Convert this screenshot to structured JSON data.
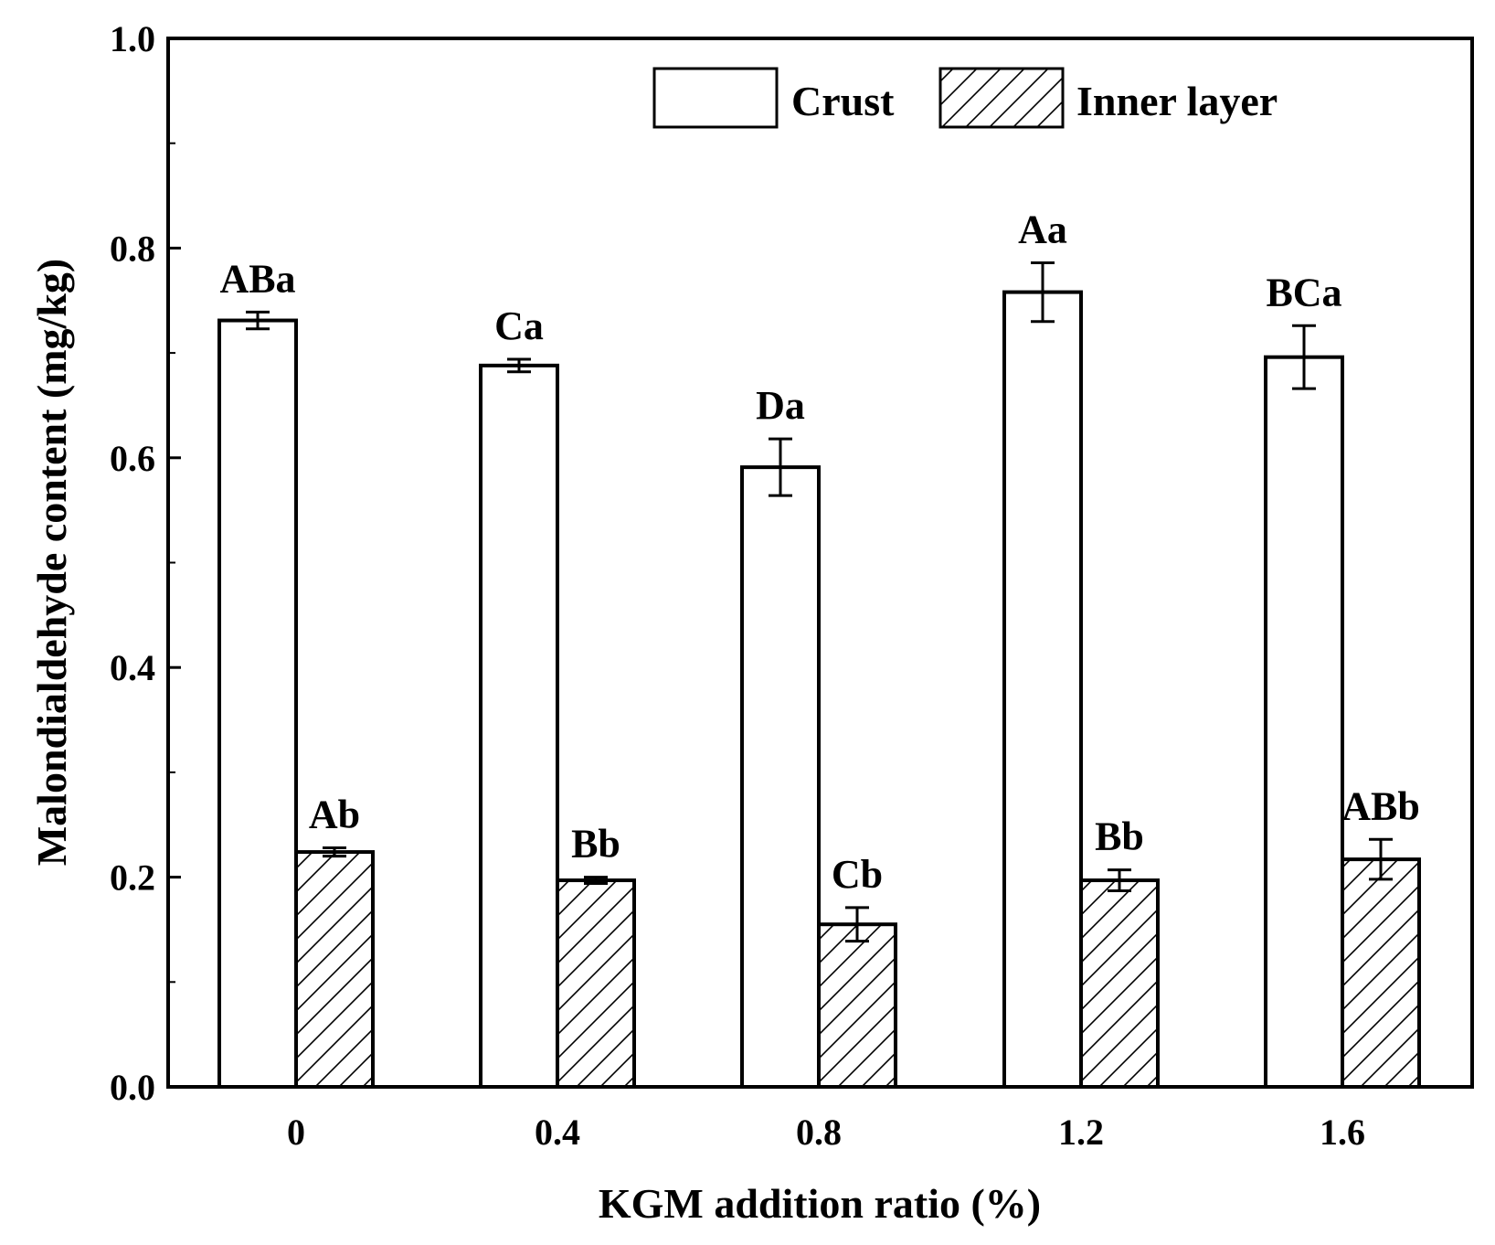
{
  "chart_data": {
    "type": "bar",
    "xlabel": "KGM addition ratio (%)",
    "ylabel": "Malondialdehyde content (mg/kg)",
    "ylim": [
      0,
      1.0
    ],
    "yticks": [
      "0.0",
      "0.2",
      "0.4",
      "0.6",
      "0.8",
      "1.0"
    ],
    "ytick_values": [
      0,
      0.2,
      0.4,
      0.6,
      0.8,
      1.0
    ],
    "categories": [
      "0",
      "0.4",
      "0.8",
      "1.2",
      "1.6"
    ],
    "grid": false,
    "legend_position": "top-right",
    "series": [
      {
        "name": "Crust",
        "pattern": "none",
        "values": [
          0.731,
          0.688,
          0.591,
          0.758,
          0.696
        ],
        "errors": [
          0.008,
          0.006,
          0.027,
          0.028,
          0.03
        ],
        "labels": [
          "ABa",
          "Ca",
          "Da",
          "Aa",
          "BCa"
        ]
      },
      {
        "name": "Inner layer",
        "pattern": "hatch",
        "values": [
          0.224,
          0.197,
          0.155,
          0.197,
          0.217
        ],
        "errors": [
          0.004,
          0.003,
          0.016,
          0.01,
          0.019
        ],
        "labels": [
          "Ab",
          "Bb",
          "Cb",
          "Bb",
          "ABb"
        ]
      }
    ],
    "colors": {
      "bar_fill": "#ffffff",
      "stroke": "#000000",
      "hatch": "#000000"
    }
  }
}
